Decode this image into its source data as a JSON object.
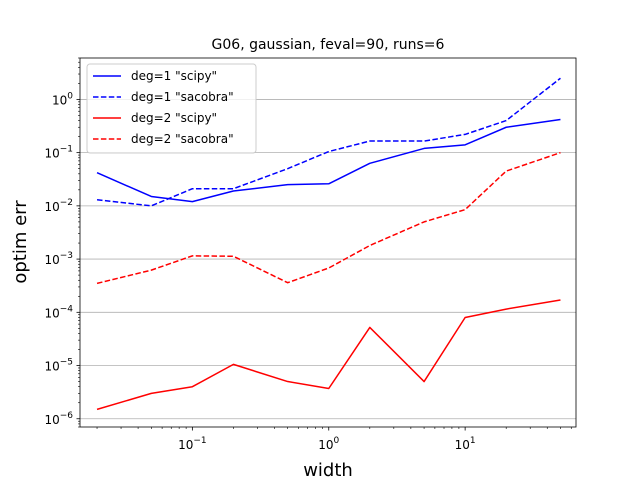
{
  "chart_data": {
    "type": "line",
    "title": "G06, gaussian, feval=90, runs=6",
    "xlabel": "width",
    "ylabel": "optim err",
    "xscale": "log",
    "yscale": "log",
    "xlim": [
      0.015,
      65
    ],
    "ylim": [
      7e-07,
      6
    ],
    "grid": "y-major",
    "legend_position": "top-left",
    "x_ticks": [
      {
        "value": 0.1,
        "base": "10",
        "exp": "−1"
      },
      {
        "value": 1,
        "base": "10",
        "exp": "0"
      },
      {
        "value": 10,
        "base": "10",
        "exp": "1"
      }
    ],
    "y_ticks": [
      {
        "value": 1e-06,
        "base": "10",
        "exp": "−6"
      },
      {
        "value": 1e-05,
        "base": "10",
        "exp": "−5"
      },
      {
        "value": 0.0001,
        "base": "10",
        "exp": "−4"
      },
      {
        "value": 0.001,
        "base": "10",
        "exp": "−3"
      },
      {
        "value": 0.01,
        "base": "10",
        "exp": "−2"
      },
      {
        "value": 0.1,
        "base": "10",
        "exp": "−1"
      },
      {
        "value": 1,
        "base": "10",
        "exp": "0"
      }
    ],
    "x": [
      0.02,
      0.05,
      0.1,
      0.2,
      0.5,
      1,
      2,
      5,
      10,
      20,
      50
    ],
    "series": [
      {
        "name": "deg=1 \"scipy\"",
        "color": "#0000ff",
        "dash": "solid",
        "values": [
          0.042,
          0.015,
          0.012,
          0.019,
          0.025,
          0.026,
          0.063,
          0.12,
          0.14,
          0.3,
          0.42
        ]
      },
      {
        "name": "deg=1 \"sacobra\"",
        "color": "#0000ff",
        "dash": "dashed",
        "values": [
          0.013,
          0.01,
          0.021,
          0.021,
          0.05,
          0.105,
          0.165,
          0.165,
          0.22,
          0.4,
          2.5
        ]
      },
      {
        "name": "deg=2 \"scipy\"",
        "color": "#ff0000",
        "dash": "solid",
        "values": [
          1.5e-06,
          3e-06,
          4e-06,
          1.05e-05,
          5e-06,
          3.7e-06,
          5.2e-05,
          5e-06,
          8e-05,
          0.000115,
          0.00017
        ]
      },
      {
        "name": "deg=2 \"sacobra\"",
        "color": "#ff0000",
        "dash": "dashed",
        "values": [
          0.00035,
          0.00062,
          0.00115,
          0.00113,
          0.00036,
          0.00068,
          0.0018,
          0.005,
          0.0085,
          0.045,
          0.1
        ]
      }
    ]
  }
}
